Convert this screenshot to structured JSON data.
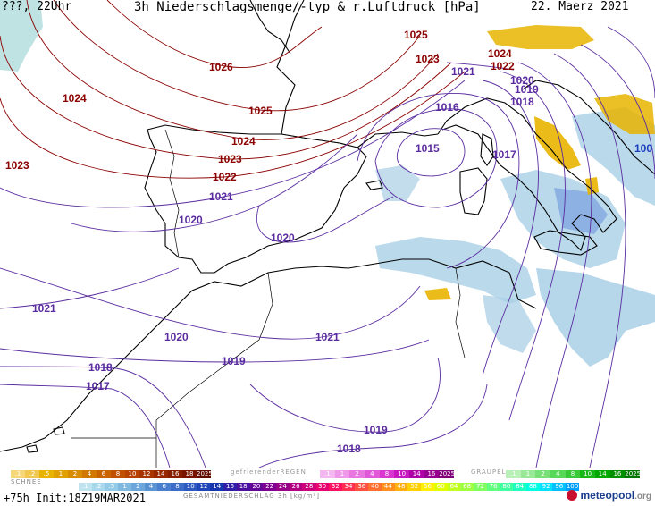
{
  "header": {
    "left": "???, 22Uhr",
    "title": "3h Niederschlagsmenge/-typ & r.Luftdruck [hPa]",
    "date": "22. Maerz 2021"
  },
  "isobar_labels": [
    {
      "text": "1025",
      "color": "#8b0000"
    },
    {
      "text": "1024",
      "color": "#8b0000"
    },
    {
      "text": "1026",
      "color": "#8b0000"
    },
    {
      "text": "1023",
      "color": "#8b0000"
    },
    {
      "text": "1024",
      "color": "#8b0000"
    },
    {
      "text": "1022",
      "color": "#8b0000"
    },
    {
      "text": "1021",
      "color": "#5a2ca0"
    },
    {
      "text": "1020",
      "color": "#5a2ca0"
    },
    {
      "text": "1025",
      "color": "#8b0000"
    },
    {
      "text": "1024",
      "color": "#8b0000"
    },
    {
      "text": "1023",
      "color": "#8b0000"
    },
    {
      "text": "1022",
      "color": "#8b0000"
    },
    {
      "text": "1021",
      "color": "#5a2ca0"
    },
    {
      "text": "1020",
      "color": "#5a2ca0"
    },
    {
      "text": "1023",
      "color": "#8b0000"
    },
    {
      "text": "1016",
      "color": "#5a2ca0"
    },
    {
      "text": "1015",
      "color": "#5a2ca0"
    },
    {
      "text": "1017",
      "color": "#5a2ca0"
    },
    {
      "text": "1020",
      "color": "#5a2ca0"
    },
    {
      "text": "1019",
      "color": "#5a2ca0"
    },
    {
      "text": "1018",
      "color": "#5a2ca0"
    },
    {
      "text": "1021",
      "color": "#5a2ca0"
    },
    {
      "text": "1020",
      "color": "#5a2ca0"
    },
    {
      "text": "1020",
      "color": "#5a2ca0"
    },
    {
      "text": "1019",
      "color": "#5a2ca0"
    },
    {
      "text": "1018",
      "color": "#5a2ca0"
    },
    {
      "text": "1017",
      "color": "#5a2ca0"
    },
    {
      "text": "1019",
      "color": "#5a2ca0"
    },
    {
      "text": "1018",
      "color": "#5a2ca0"
    },
    {
      "text": "1022",
      "color": "#8b0000"
    },
    {
      "text": "1024",
      "color": "#8b0000"
    },
    {
      "text": "1021",
      "color": "#5a2ca0"
    },
    {
      "text": "100",
      "color": "#1a3cc0"
    }
  ],
  "legend": {
    "snow_title": "SCHNEE",
    "snow_values": [
      ".1",
      ".2",
      ".5",
      "1",
      "2",
      "4",
      "6",
      "8",
      "10",
      "12",
      "14",
      "16",
      "18",
      "2025+"
    ],
    "freezing_title": "gefrierenderREGEN",
    "freezing_values": [
      ".1",
      "1",
      "2",
      "4",
      "8",
      "10",
      "14",
      "16",
      "2025+"
    ],
    "graupel_title": "GRAUPEL",
    "graupel_values": [
      ".1",
      "1",
      "2",
      "4",
      "8",
      "10",
      "14",
      "16",
      "2025+"
    ],
    "rain_values": [
      ".1",
      ".2",
      ".5",
      "1",
      "2",
      "4",
      "6",
      "8",
      "10",
      "12",
      "14",
      "16",
      "18",
      "20",
      "22",
      "24",
      "26",
      "28",
      "30",
      "32",
      "34",
      "36",
      "40",
      "44",
      "48",
      "52",
      "56",
      "60",
      "64",
      "68",
      "72",
      "76",
      "80",
      "84",
      "88",
      "92",
      "96",
      "100"
    ],
    "total_title": "GESAMTNIEDERSCHLAG 3h [kg/m²]"
  },
  "footer": {
    "run": "+75h  Init:18Z19MAR2021"
  },
  "logo": {
    "text": "meteopool",
    "suffix": ".org"
  },
  "colors": {
    "isobar_high": "#8b0000",
    "isobar_low": "#5a2ca0",
    "coast": "#000000",
    "rain_light": "#a9cfe6",
    "rain_mid": "#7b9fe0",
    "snow": "#e8b400"
  }
}
